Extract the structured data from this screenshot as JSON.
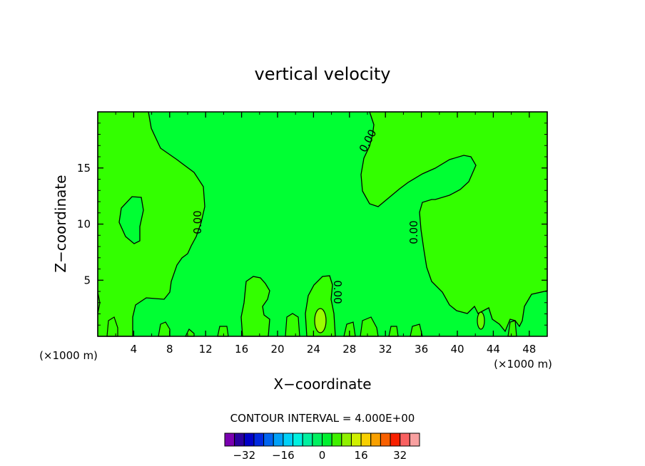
{
  "chart_data": {
    "type": "heatmap",
    "title": "vertical velocity",
    "xlabel": "X−coordinate",
    "ylabel": "Z−coordinate",
    "x_unit_left": "(×1000 m)",
    "x_unit_right": "(×1000 m)",
    "xlim": [
      0,
      50
    ],
    "ylim": [
      0,
      20
    ],
    "x_ticks": [
      4,
      8,
      12,
      16,
      20,
      24,
      28,
      32,
      36,
      40,
      44,
      48
    ],
    "y_ticks": [
      5,
      10,
      15
    ],
    "contour_label": "0.00",
    "contour_interval_text": "CONTOUR INTERVAL = 4.000E+00",
    "colorbar": {
      "colors": [
        "#7a00b0",
        "#2a00a0",
        "#0000c8",
        "#0028e0",
        "#0064f0",
        "#00a0f8",
        "#00d0f8",
        "#00f0e0",
        "#00f0a0",
        "#00f060",
        "#00f030",
        "#40f000",
        "#90f000",
        "#d0f000",
        "#f8d000",
        "#f8a000",
        "#f86000",
        "#f82000",
        "#f86060",
        "#f8a0a0"
      ],
      "tick_values": [
        -32,
        -16,
        0,
        16,
        32
      ],
      "tick_labels": [
        "−32",
        "−16",
        "0",
        "16",
        "32"
      ],
      "vmin": -40,
      "vmax": 40
    },
    "background_color": "#00ff33",
    "positive_region_color": "#33ff00",
    "peak_color": "#99ff00"
  }
}
